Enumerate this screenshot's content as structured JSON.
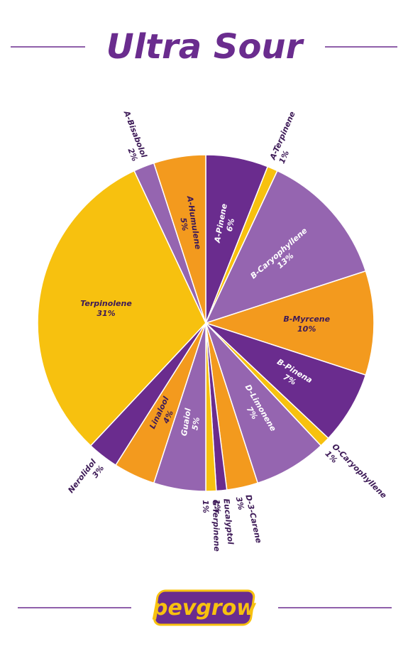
{
  "chart_data": {
    "type": "pie",
    "title": "Ultra Sour",
    "categories": [
      "A-Pinene",
      "A-Terpinene",
      "B-Caryophyllene",
      "B-Myrcene",
      "B-Pinena",
      "O-Caryophyllene",
      "D-Limonene",
      "D-3-Carene",
      "Eucalyptol",
      "G-Terpinene",
      "Guaiol",
      "Linalool",
      "Nerolidol",
      "Terpinolene",
      "A-Bisabolol",
      "A-Humulene"
    ],
    "values": [
      6,
      1,
      13,
      10,
      7,
      1,
      7,
      3,
      1,
      1,
      5,
      4,
      3,
      31,
      2,
      5
    ],
    "value_labels": [
      "6%",
      "1%",
      "13%",
      "10%",
      "7%",
      "1%",
      "7%",
      "3%",
      "1%",
      "1%",
      "5%",
      "4%",
      "3%",
      "31%",
      "2%",
      "5%"
    ],
    "colors": [
      "#6a2c8e",
      "#f7c10f",
      "#9565b0",
      "#f39a1e",
      "#6a2c8e",
      "#f7c10f",
      "#9565b0",
      "#f39a1e",
      "#6a2c8e",
      "#f7c10f",
      "#9565b0",
      "#f39a1e",
      "#6a2c8e",
      "#f7c10f",
      "#9565b0",
      "#f39a1e"
    ]
  },
  "logo": "pevgrow"
}
